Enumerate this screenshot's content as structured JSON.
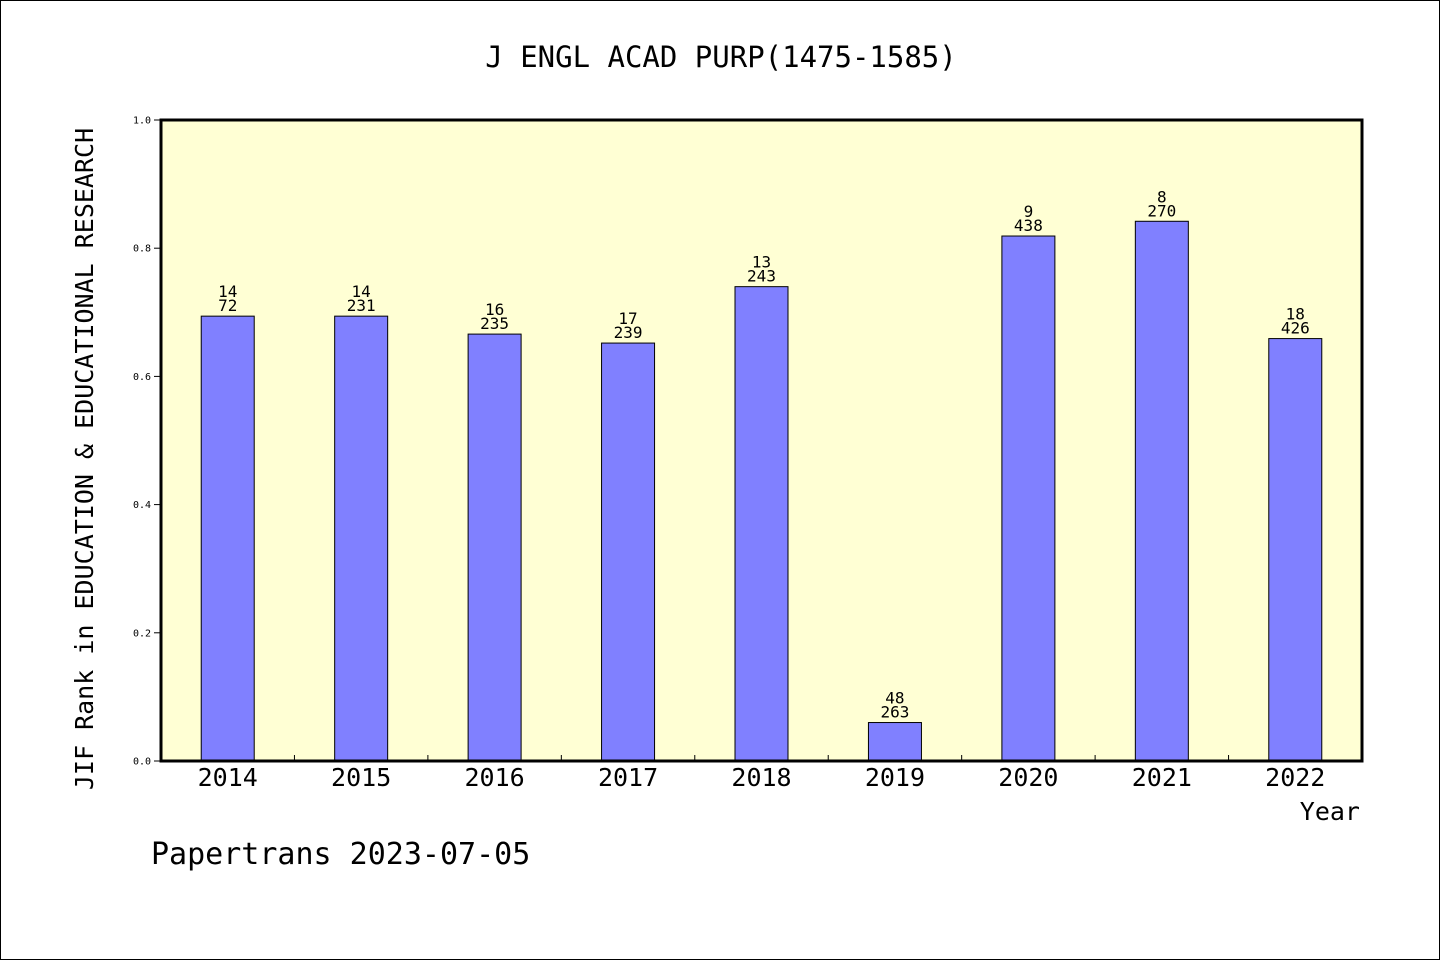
{
  "chart_data": {
    "type": "bar",
    "title": "J ENGL ACAD PURP(1475-1585)",
    "xlabel": "Year",
    "ylabel": "JIF Rank in EDUCATION & EDUCATIONAL RESEARCH",
    "categories": [
      "2014",
      "2015",
      "2016",
      "2017",
      "2018",
      "2019",
      "2020",
      "2021",
      "2022"
    ],
    "values": [
      0.694,
      0.694,
      0.666,
      0.652,
      0.74,
      0.06,
      0.819,
      0.842,
      0.659
    ],
    "rank": [
      "14",
      "14",
      "16",
      "17",
      "13",
      "48",
      "9",
      "8",
      "18"
    ],
    "total": [
      "72",
      "231",
      "235",
      "239",
      "243",
      "263",
      "438",
      "270",
      "426"
    ],
    "ylim": [
      0,
      1.0
    ],
    "yticks": [
      "0.0",
      "0.2",
      "0.4",
      "0.6",
      "0.8",
      "1.0"
    ],
    "colors": {
      "bar": "#8080ff",
      "plot_bg": "#ffffd4",
      "axis": "#000000"
    },
    "grid": false
  },
  "footer": {
    "credit": "Papertrans 2023-07-05"
  }
}
